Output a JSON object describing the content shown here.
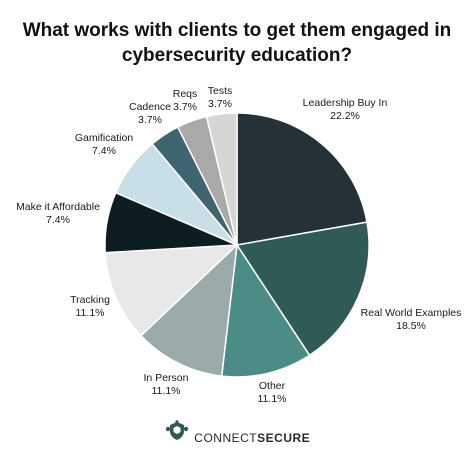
{
  "title_lines": [
    "What works with clients to get them engaged in",
    "cybersecurity education?"
  ],
  "brand": {
    "part1": "CONNECT",
    "part2": "SECURE",
    "logo": "turtle-shield-icon"
  },
  "chart_data": {
    "type": "pie",
    "title": "What works with clients to get them engaged in cybersecurity education?",
    "slices": [
      {
        "label": "Leadership Buy In",
        "value": 22.2,
        "value_label": "22.2%",
        "color": "#243238"
      },
      {
        "label": "Real World Examples",
        "value": 18.5,
        "value_label": "18.5%",
        "color": "#2f5a55"
      },
      {
        "label": "Other",
        "value": 11.1,
        "value_label": "11.1%",
        "color": "#4b8c87"
      },
      {
        "label": "In Person",
        "value": 11.1,
        "value_label": "11.1%",
        "color": "#9aaaa8"
      },
      {
        "label": "Tracking",
        "value": 11.1,
        "value_label": "11.1%",
        "color": "#e8e8e8"
      },
      {
        "label": "Make it Affordable",
        "value": 7.4,
        "value_label": "7.4%",
        "color": "#0c1e22"
      },
      {
        "label": "Gamification",
        "value": 7.4,
        "value_label": "7.4%",
        "color": "#c9dfe8"
      },
      {
        "label": "Cadence",
        "value": 3.7,
        "value_label": "3.7%",
        "color": "#3f6670"
      },
      {
        "label": "Reqs",
        "value": 3.7,
        "value_label": "3.7%",
        "color": "#a9a9a9"
      },
      {
        "label": "Tests",
        "value": 3.7,
        "value_label": "3.7%",
        "color": "#d6d6d6"
      }
    ]
  }
}
